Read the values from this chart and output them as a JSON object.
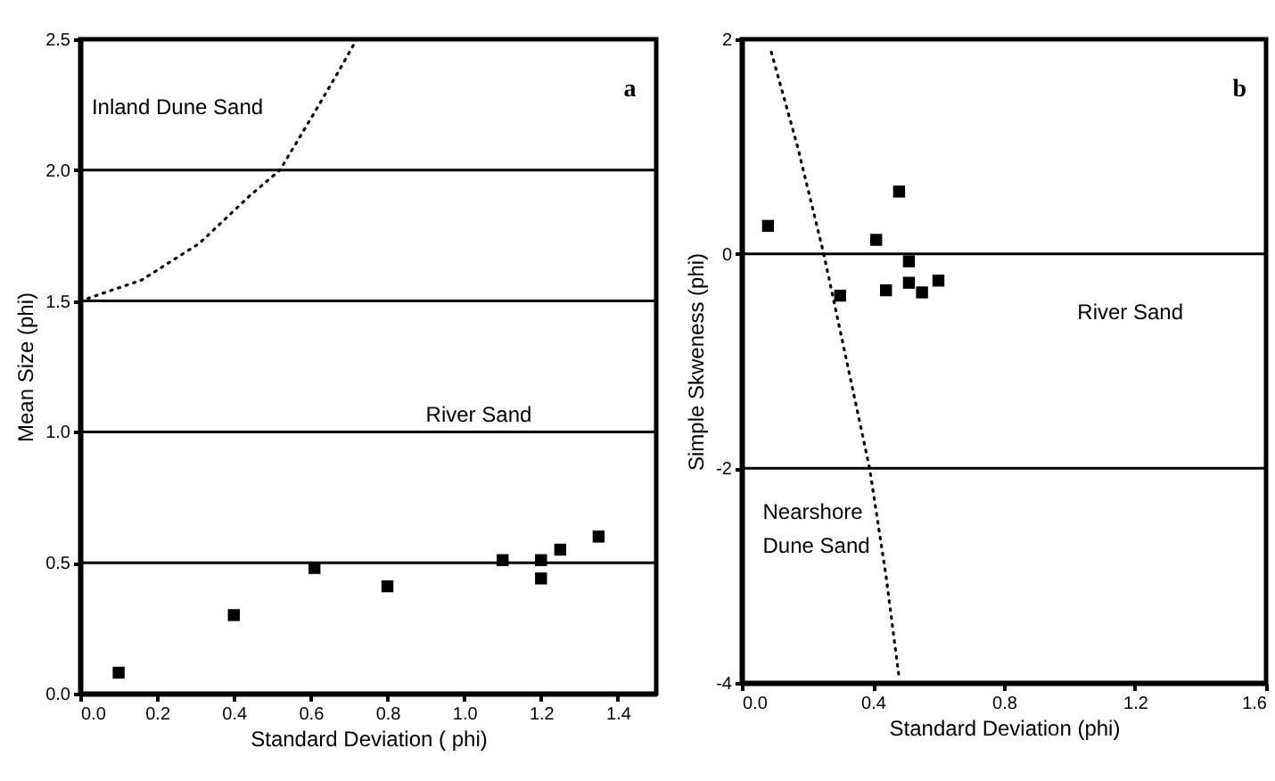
{
  "chart_data": [
    {
      "type": "scatter",
      "title": "a",
      "xlabel": "Standard Deviation ( phi)",
      "ylabel": "Mean Size (phi)",
      "xlim": [
        0,
        1.5
      ],
      "ylim": [
        0,
        2.5
      ],
      "xticks": [
        {
          "value": 0,
          "label": "0.0"
        },
        {
          "value": 0.2,
          "label": "0.2"
        },
        {
          "value": 0.4,
          "label": "0.4"
        },
        {
          "value": 0.6,
          "label": "0.6"
        },
        {
          "value": 0.8,
          "label": "0.8"
        },
        {
          "value": 1,
          "label": "1.0"
        },
        {
          "value": 1.2,
          "label": "1.2"
        },
        {
          "value": 1.4,
          "label": "1.4"
        }
      ],
      "yticks": [
        {
          "value": 0,
          "label": "0.0"
        },
        {
          "value": 0.5,
          "label": "0.5"
        },
        {
          "value": 1,
          "label": "1.0"
        },
        {
          "value": 1.5,
          "label": "1.5"
        },
        {
          "value": 2,
          "label": "2.0"
        },
        {
          "value": 2.5,
          "label": "2.5"
        }
      ],
      "grid": false,
      "series": [
        {
          "type": "scatter",
          "marker": "square",
          "color": "#000000",
          "x": [
            0.1,
            0.4,
            0.61,
            0.8,
            1.1,
            1.2,
            1.2,
            1.25,
            1.35
          ],
          "values": [
            0.08,
            0.3,
            0.48,
            0.41,
            0.51,
            0.51,
            0.44,
            0.55,
            0.6
          ]
        },
        {
          "type": "line",
          "marker": "none",
          "line_style": "dotted",
          "color": "#000000",
          "x": [
            0,
            0.16,
            0.31,
            0.44,
            0.52,
            0.61,
            0.67,
            0.72
          ],
          "values": [
            1.5,
            1.58,
            1.72,
            1.9,
            2.0,
            2.22,
            2.37,
            2.5
          ]
        }
      ],
      "ref_lines": [
        {
          "axis": "y",
          "value": 0.5,
          "color": "#000000"
        },
        {
          "axis": "y",
          "value": 1,
          "color": "#000000"
        },
        {
          "axis": "y",
          "value": 1.5,
          "color": "#000000"
        },
        {
          "axis": "y",
          "value": 2,
          "color": "#000000"
        }
      ],
      "annotations": [
        "Inland Dune Sand",
        "River Sand"
      ]
    },
    {
      "type": "scatter",
      "title": "b",
      "xlabel": "Standard Deviation (phi)",
      "ylabel": "Simple Skweness (phi)",
      "xlim": [
        0,
        1.6
      ],
      "ylim": [
        -4,
        2
      ],
      "xticks": [
        {
          "value": 0,
          "label": "0.0"
        },
        {
          "value": 0.4,
          "label": "0.4"
        },
        {
          "value": 0.8,
          "label": "0.8"
        },
        {
          "value": 1.2,
          "label": "1.2"
        },
        {
          "value": 1.6,
          "label": "1.6"
        }
      ],
      "yticks": [
        -4,
        -2,
        0,
        2
      ],
      "grid": false,
      "series": [
        {
          "type": "scatter",
          "marker": "square",
          "color": "#000000",
          "x": [
            0.08,
            0.3,
            0.41,
            0.48,
            0.44,
            0.51,
            0.51,
            0.55,
            0.6
          ],
          "values": [
            0.26,
            -0.39,
            0.13,
            0.58,
            -0.34,
            -0.07,
            -0.27,
            -0.36,
            -0.25
          ]
        },
        {
          "type": "line",
          "marker": "none",
          "line_style": "dotted",
          "color": "#000000",
          "x": [
            0.09,
            0.17,
            0.25,
            0.32,
            0.39,
            0.44,
            0.48
          ],
          "values": [
            1.88,
            1,
            0,
            -1,
            -2,
            -3,
            -3.95
          ]
        }
      ],
      "ref_lines": [
        {
          "axis": "y",
          "value": 0,
          "color": "#000000"
        },
        {
          "axis": "y",
          "value": -2,
          "color": "#000000"
        }
      ],
      "annotations": [
        "River Sand",
        "Nearshore\nDune Sand"
      ]
    }
  ]
}
